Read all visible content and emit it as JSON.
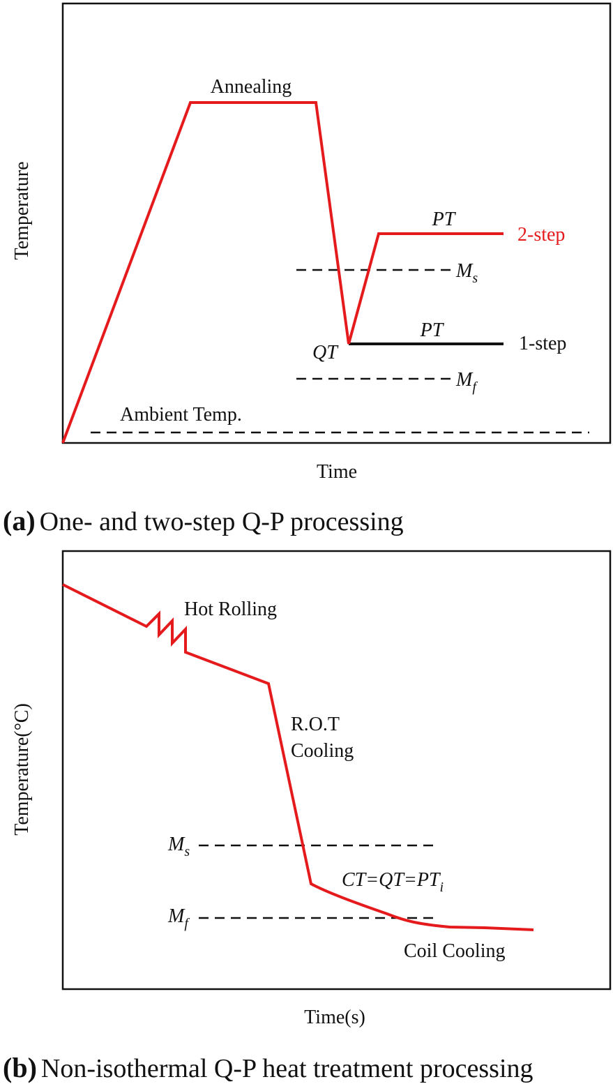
{
  "panel_a": {
    "y_label": "Temperature",
    "x_label": "Time",
    "caption_tag": "(a)",
    "caption_text": "One- and two-step Q-P processing",
    "labels": {
      "annealing": "Annealing",
      "pt_two_step": "PT",
      "two_step": "2-step",
      "ms": "M",
      "ms_sub": "s",
      "qt": "QT",
      "pt_one_step": "PT",
      "one_step": "1-step",
      "mf": "M",
      "mf_sub": "f",
      "ambient": "Ambient Temp."
    }
  },
  "panel_b": {
    "y_label": "Temperature(°C)",
    "x_label": "Time(s)",
    "caption_tag": "(b)",
    "caption_text": "Non-isothermal Q-P heat treatment processing",
    "labels": {
      "hot_rolling": "Hot Rolling",
      "rot": "R.O.T",
      "cooling": "Cooling",
      "ms": "M",
      "ms_sub": "s",
      "ct_qt_pt": "CT=QT=PT",
      "ct_qt_pt_sub": "i",
      "mf": "M",
      "mf_sub": "f",
      "coil_cooling": "Coil Cooling"
    }
  },
  "colors": {
    "process_curve": "#e41a1c",
    "one_step_line": "#111111",
    "dashed_lines": "#111111"
  }
}
